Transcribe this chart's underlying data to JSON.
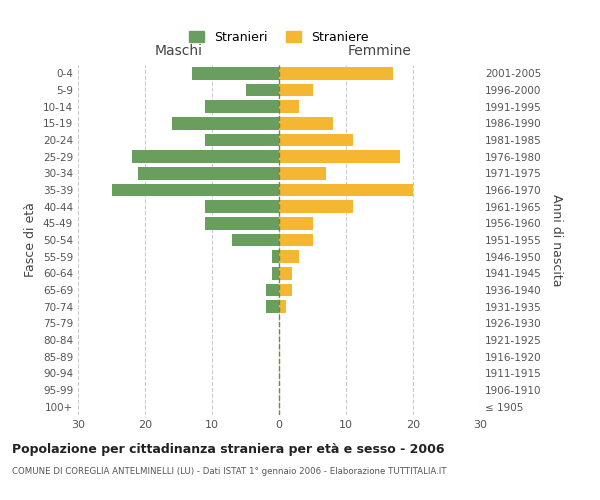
{
  "age_groups": [
    "100+",
    "95-99",
    "90-94",
    "85-89",
    "80-84",
    "75-79",
    "70-74",
    "65-69",
    "60-64",
    "55-59",
    "50-54",
    "45-49",
    "40-44",
    "35-39",
    "30-34",
    "25-29",
    "20-24",
    "15-19",
    "10-14",
    "5-9",
    "0-4"
  ],
  "birth_years": [
    "≤ 1905",
    "1906-1910",
    "1911-1915",
    "1916-1920",
    "1921-1925",
    "1926-1930",
    "1931-1935",
    "1936-1940",
    "1941-1945",
    "1946-1950",
    "1951-1955",
    "1956-1960",
    "1961-1965",
    "1966-1970",
    "1971-1975",
    "1976-1980",
    "1981-1985",
    "1986-1990",
    "1991-1995",
    "1996-2000",
    "2001-2005"
  ],
  "maschi": [
    0,
    0,
    0,
    0,
    0,
    0,
    2,
    2,
    1,
    1,
    7,
    11,
    11,
    25,
    21,
    22,
    11,
    16,
    11,
    5,
    13
  ],
  "femmine": [
    0,
    0,
    0,
    0,
    0,
    0,
    1,
    2,
    2,
    3,
    5,
    5,
    11,
    20,
    7,
    18,
    11,
    8,
    3,
    5,
    17
  ],
  "male_color": "#6a9e5e",
  "female_color": "#f5b731",
  "grid_color": "#cccccc",
  "dashed_line_color": "#808040",
  "bg_color": "#ffffff",
  "xlim": 30,
  "title": "Popolazione per cittadinanza straniera per età e sesso - 2006",
  "subtitle": "COMUNE DI COREGLIA ANTELMINELLI (LU) - Dati ISTAT 1° gennaio 2006 - Elaborazione TUTTITALIA.IT",
  "ylabel_left": "Fasce di età",
  "ylabel_right": "Anni di nascita",
  "legend_maschi": "Stranieri",
  "legend_femmine": "Straniere",
  "header_maschi": "Maschi",
  "header_femmine": "Femmine"
}
